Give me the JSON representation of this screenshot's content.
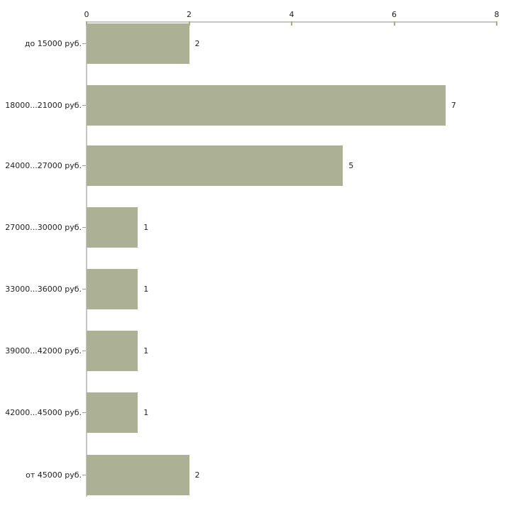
{
  "chart_data": {
    "type": "bar",
    "orientation": "horizontal",
    "title": "",
    "xlabel": "",
    "ylabel": "",
    "categories": [
      "до 15000 руб.",
      "18000...21000 руб.",
      "24000...27000 руб.",
      "27000...30000 руб.",
      "33000...36000 руб.",
      "39000...42000 руб.",
      "42000...45000 руб.",
      "от 45000 руб."
    ],
    "values": [
      2,
      7,
      5,
      1,
      1,
      1,
      1,
      2
    ],
    "x_ticks": [
      0,
      2,
      4,
      6,
      8
    ],
    "xlim": [
      0,
      8
    ],
    "axis_position": "top",
    "grid": false,
    "legend": false,
    "colors": {
      "bar": "#acb095",
      "axis_line": "#c6c6c6",
      "tick_mark": "#b1ab7f",
      "text": "#222222",
      "background": "#ffffff"
    }
  }
}
